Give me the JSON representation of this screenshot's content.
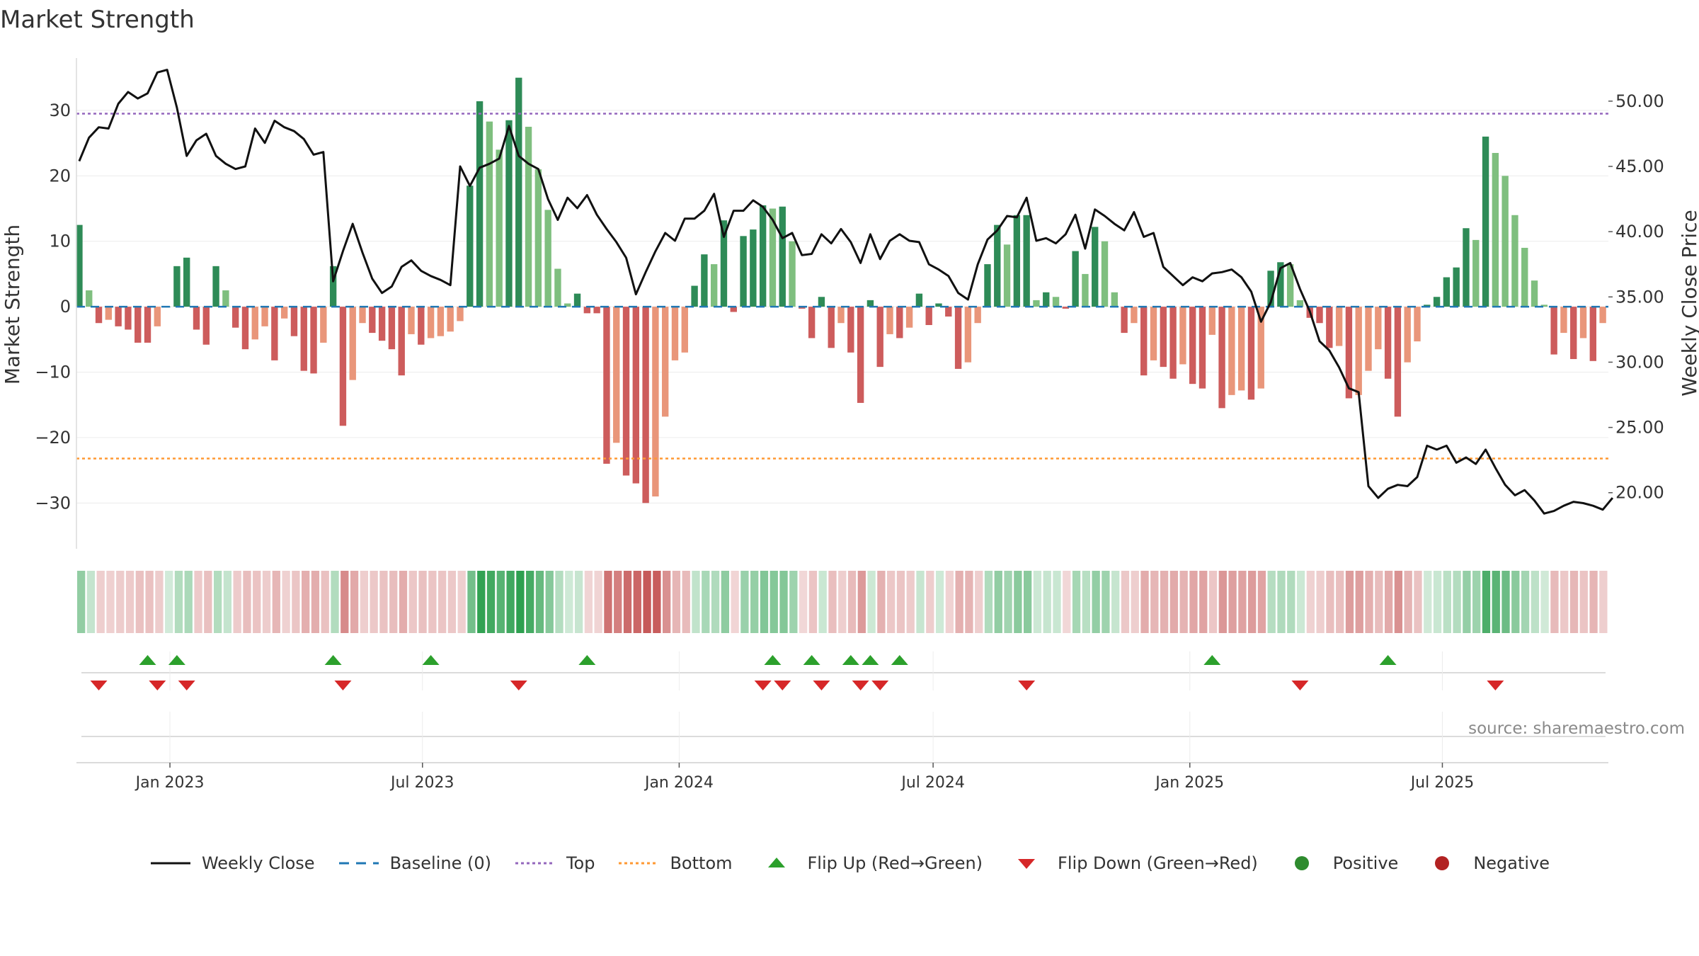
{
  "title": "Market Strength",
  "source": "source: sharemaestro.com",
  "colors": {
    "positive_strong": "#2e8b57",
    "positive_light": "#7fbf7f",
    "negative_strong": "#cd5c5c",
    "negative_light": "#e9967a",
    "close_line": "#111111",
    "baseline": "#1f77b4",
    "top": "#9467bd",
    "bottom": "#ff9933",
    "flip_up": "#2ca02c",
    "flip_down": "#d62728",
    "negative_dot": "#b22222"
  },
  "legend": [
    {
      "key": "close",
      "label": "Weekly Close",
      "icon": "line-icon"
    },
    {
      "key": "baseline",
      "label": "Baseline (0)",
      "icon": "dashed-line-icon"
    },
    {
      "key": "top",
      "label": "Top",
      "icon": "dotted-line-icon"
    },
    {
      "key": "bottom",
      "label": "Bottom",
      "icon": "dotted-line-icon"
    },
    {
      "key": "flip_up",
      "label": "Flip Up (Red→Green)",
      "icon": "triangle-up-icon"
    },
    {
      "key": "flip_down",
      "label": "Flip Down (Green→Red)",
      "icon": "triangle-down-icon"
    },
    {
      "key": "positive",
      "label": "Positive",
      "icon": "dot-icon"
    },
    {
      "key": "negative",
      "label": "Negative",
      "icon": "dot-icon"
    }
  ],
  "chart_data": {
    "type": "bar",
    "start_date": "2022-10-28",
    "x_ticks": [
      "2023-01-01",
      "2023-07-01",
      "2024-01-01",
      "2024-07-01",
      "2025-01-01",
      "2025-07-01"
    ],
    "x_tick_labels": [
      "Jan 2023",
      "Jul 2023",
      "Jan 2024",
      "Jul 2024",
      "Jan 2025",
      "Jul 2025"
    ],
    "xlim": [
      "2022-10-26",
      "2025-10-28"
    ],
    "ylabel": "Market Strength",
    "y2label": "Weekly Close Price",
    "ylim": [
      -37,
      38
    ],
    "y2lim": [
      15.7,
      53.3
    ],
    "y_ticks": [
      -30,
      -20,
      -10,
      0,
      10,
      20,
      30
    ],
    "y2_ticks": [
      20,
      25,
      30,
      35,
      40,
      45,
      50
    ],
    "top_level": 29.5,
    "bottom_level": -23.2,
    "series": [
      {
        "name": "Market Strength",
        "values": [
          12.5,
          2.5,
          -2.5,
          -2,
          -3,
          -3.5,
          -5.5,
          -5.5,
          -3,
          0,
          6.2,
          7.5,
          -3.5,
          -5.8,
          6.2,
          2.5,
          -3.2,
          -6.5,
          -5,
          -3,
          -8.2,
          -1.8,
          -4.5,
          -9.8,
          -10.2,
          -5.5,
          6.2,
          -18.2,
          -11.2,
          -2.5,
          -4,
          -5.2,
          -6.5,
          -10.5,
          -4.2,
          -5.8,
          -4.8,
          -4.5,
          -3.8,
          -2.2,
          18.5,
          31.4,
          28.3,
          24,
          28.5,
          35,
          27.5,
          21,
          14.8,
          5.8,
          0.5,
          2,
          -1,
          -1,
          -24,
          -20.8,
          -25.8,
          -27,
          -30,
          -29,
          -16.8,
          -8.2,
          -7,
          3.2,
          8,
          6.5,
          13.2,
          -0.8,
          10.8,
          11.8,
          15.5,
          15,
          15.3,
          10,
          -0.3,
          -4.8,
          1.5,
          -6.3,
          -2.5,
          -7,
          -14.7,
          1,
          -9.2,
          -4.2,
          -4.8,
          -3.2,
          2,
          -2.8,
          0.5,
          -1.5,
          -9.5,
          -8.5,
          -2.5,
          6.5,
          12.5,
          9.5,
          14,
          14,
          1,
          2.2,
          1.5,
          -0.3,
          8.5,
          5,
          12.2,
          10,
          2.2,
          -4,
          -2.5,
          -10.5,
          -8.2,
          -9.2,
          -11,
          -8.8,
          -11.8,
          -12.5,
          -4.3,
          -15.5,
          -13.5,
          -12.8,
          -14.2,
          -12.5,
          5.5,
          6.8,
          6.5,
          1,
          -1.7,
          -2.5,
          -6.3,
          -6,
          -14,
          -13.5,
          -9.8,
          -6.5,
          -11,
          -16.8,
          -8.5,
          -5.3,
          0.3,
          1.5,
          4.5,
          6,
          12,
          10.2,
          26,
          23.5,
          20,
          14,
          9,
          4,
          0.3,
          -7.3,
          -4,
          -8,
          -4.8,
          -8.3,
          -2.5
        ]
      },
      {
        "name": "Weekly Close",
        "values": [
          45.4,
          47.2,
          48,
          47.9,
          49.8,
          50.7,
          50.2,
          50.6,
          52.2,
          52.4,
          49.5,
          45.8,
          47,
          47.5,
          45.8,
          45.2,
          44.8,
          45,
          47.9,
          46.8,
          48.5,
          48,
          47.7,
          47.1,
          45.9,
          46.1,
          36.2,
          38.5,
          40.6,
          38.4,
          36.4,
          35.3,
          35.8,
          37.3,
          37.8,
          37,
          36.6,
          36.3,
          35.9,
          45,
          43.5,
          44.9,
          45.2,
          45.6,
          48.1,
          45.8,
          45.2,
          44.8,
          42.5,
          40.9,
          42.6,
          41.8,
          42.8,
          41.3,
          40.2,
          39.2,
          38,
          35.2,
          36.9,
          38.5,
          39.9,
          39.3,
          41,
          41,
          41.6,
          42.9,
          39.6,
          41.6,
          41.6,
          42.4,
          41.9,
          40.9,
          39.5,
          39.9,
          38.2,
          38.3,
          39.8,
          39.1,
          40.2,
          39.2,
          37.6,
          39.8,
          37.9,
          39.3,
          39.8,
          39.3,
          39.2,
          37.5,
          37.1,
          36.6,
          35.3,
          34.8,
          37.5,
          39.4,
          40.1,
          41.2,
          41.1,
          42.6,
          39.3,
          39.5,
          39.1,
          39.8,
          41.3,
          38.7,
          41.7,
          41.2,
          40.6,
          40.1,
          41.5,
          39.6,
          39.9,
          37.3,
          36.6,
          35.9,
          36.5,
          36.2,
          36.8,
          36.9,
          37.1,
          36.5,
          35.4,
          33.1,
          34.6,
          37.2,
          37.6,
          35.6,
          33.9,
          31.6,
          30.9,
          29.6,
          28,
          27.7,
          20.5,
          19.6,
          20.3,
          20.6,
          20.5,
          21.2,
          23.6,
          23.3,
          23.6,
          22.3,
          22.7,
          22.2,
          23.3,
          21.9,
          20.6,
          19.8,
          20.2,
          19.4,
          18.4,
          18.6,
          19,
          19.3,
          19.2,
          19,
          18.7,
          19.6
        ]
      }
    ],
    "flip_up_dates": [
      "2022-12-16",
      "2023-01-06",
      "2023-04-28",
      "2023-07-07",
      "2023-10-27",
      "2024-03-08",
      "2024-04-05",
      "2024-05-03",
      "2024-05-17",
      "2024-06-07",
      "2025-01-17",
      "2025-05-23"
    ],
    "flip_down_dates": [
      "2022-11-11",
      "2022-12-23",
      "2023-01-13",
      "2023-05-05",
      "2023-09-08",
      "2024-03-01",
      "2024-03-15",
      "2024-04-12",
      "2024-05-10",
      "2024-05-24",
      "2024-09-06",
      "2025-03-21",
      "2025-08-08"
    ],
    "legend_position": "bottom",
    "grid": true
  }
}
